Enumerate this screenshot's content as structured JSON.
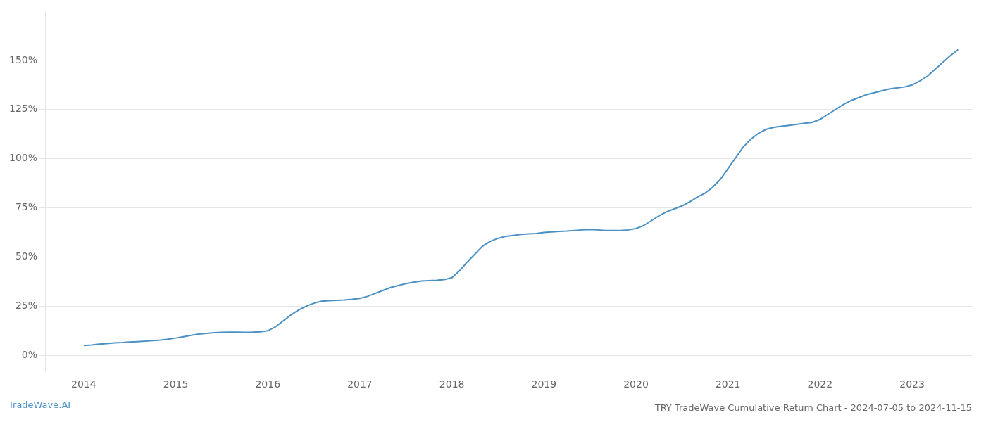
{
  "chart_data": {
    "type": "line",
    "title": "TRY TradeWave Cumulative Return Chart - 2024-07-05 to 2024-11-15",
    "annotations": [
      {
        "text": "TradeWave.AI",
        "color": "#4a90c4"
      }
    ],
    "color": "#4a90c4",
    "grid": "y",
    "x": [
      2014.0,
      2014.083,
      2014.167,
      2014.25,
      2014.333,
      2014.417,
      2014.5,
      2014.583,
      2014.667,
      2014.75,
      2014.833,
      2014.917,
      2015.0,
      2015.083,
      2015.167,
      2015.25,
      2015.333,
      2015.417,
      2015.5,
      2015.583,
      2015.667,
      2015.75,
      2015.833,
      2015.917,
      2016.0,
      2016.083,
      2016.167,
      2016.25,
      2016.333,
      2016.417,
      2016.5,
      2016.583,
      2016.667,
      2016.75,
      2016.833,
      2016.917,
      2017.0,
      2017.083,
      2017.167,
      2017.25,
      2017.333,
      2017.417,
      2017.5,
      2017.583,
      2017.667,
      2017.75,
      2017.833,
      2017.917,
      2018.0,
      2018.083,
      2018.167,
      2018.25,
      2018.333,
      2018.417,
      2018.5,
      2018.583,
      2018.667,
      2018.75,
      2018.833,
      2018.917,
      2019.0,
      2019.083,
      2019.167,
      2019.25,
      2019.333,
      2019.417,
      2019.5,
      2019.583,
      2019.667,
      2019.75,
      2019.833,
      2019.917,
      2020.0,
      2020.083,
      2020.167,
      2020.25,
      2020.333,
      2020.417,
      2020.5,
      2020.583,
      2020.667,
      2020.75,
      2020.833,
      2020.917,
      2021.0,
      2021.083,
      2021.167,
      2021.25,
      2021.333,
      2021.417,
      2021.5,
      2021.583,
      2021.667,
      2021.75,
      2021.833,
      2021.917,
      2022.0,
      2022.083,
      2022.167,
      2022.25,
      2022.333,
      2022.417,
      2022.5,
      2022.583,
      2022.667,
      2022.75,
      2022.833,
      2022.917,
      2023.0,
      2023.083,
      2023.167,
      2023.25,
      2023.333,
      2023.417,
      2023.5
    ],
    "values": [
      5.0,
      5.3,
      5.7,
      6.0,
      6.3,
      6.5,
      6.8,
      7.0,
      7.2,
      7.5,
      7.8,
      8.2,
      8.8,
      9.5,
      10.2,
      10.8,
      11.2,
      11.5,
      11.7,
      11.8,
      11.8,
      11.7,
      11.8,
      12.0,
      12.5,
      14.5,
      17.5,
      20.5,
      23.0,
      25.0,
      26.5,
      27.5,
      27.8,
      28.0,
      28.2,
      28.5,
      29.0,
      30.0,
      31.5,
      33.0,
      34.5,
      35.5,
      36.5,
      37.2,
      37.8,
      38.0,
      38.2,
      38.5,
      39.5,
      43.0,
      47.5,
      51.5,
      55.5,
      58.0,
      59.5,
      60.5,
      61.0,
      61.5,
      61.8,
      62.0,
      62.5,
      62.8,
      63.0,
      63.2,
      63.5,
      63.8,
      64.0,
      63.8,
      63.5,
      63.5,
      63.5,
      63.8,
      64.5,
      66.0,
      68.5,
      71.0,
      73.0,
      74.5,
      76.0,
      78.0,
      80.5,
      82.5,
      85.5,
      89.5,
      95.0,
      100.5,
      106.0,
      110.0,
      113.0,
      115.0,
      116.0,
      116.5,
      117.0,
      117.5,
      118.0,
      118.5,
      120.0,
      122.5,
      125.0,
      127.5,
      129.5,
      131.0,
      132.5,
      133.5,
      134.5,
      135.5,
      136.0,
      136.5,
      137.5,
      139.5,
      142.0,
      145.5,
      149.0,
      152.5,
      155.5
    ],
    "xlim": [
      2013.58,
      2023.65
    ],
    "xticks": [
      2014,
      2015,
      2016,
      2017,
      2018,
      2019,
      2020,
      2021,
      2022,
      2023
    ],
    "ylim": [
      -8,
      175
    ],
    "yticks": [
      {
        "value": 0,
        "label": "0%"
      },
      {
        "value": 25,
        "label": "25%"
      },
      {
        "value": 50,
        "label": "50%"
      },
      {
        "value": 75,
        "label": "75%"
      },
      {
        "value": 100,
        "label": "100%"
      },
      {
        "value": 125,
        "label": "125%"
      },
      {
        "value": 150,
        "label": "150%"
      }
    ]
  }
}
